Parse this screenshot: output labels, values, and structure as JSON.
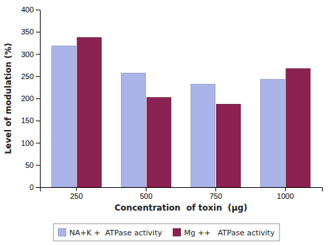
{
  "chart_data": {
    "type": "bar",
    "categories": [
      "250",
      "500",
      "750",
      "1000"
    ],
    "series": [
      {
        "name": "NA+K +  ATPase activity",
        "color": "#aab4e8",
        "values": [
          318,
          257,
          232,
          243
        ]
      },
      {
        "name": "Mg ++   ATPase activity",
        "color": "#8b2252",
        "values": [
          337,
          202,
          187,
          267
        ]
      }
    ],
    "xlabel": "Concentration  of toxin  (μg)",
    "ylabel": "Level of modulation (%)",
    "ylim": [
      0,
      400
    ],
    "yticks": [
      0,
      50,
      100,
      150,
      200,
      250,
      300,
      350,
      400
    ],
    "grid": false,
    "legend": "bottom"
  }
}
